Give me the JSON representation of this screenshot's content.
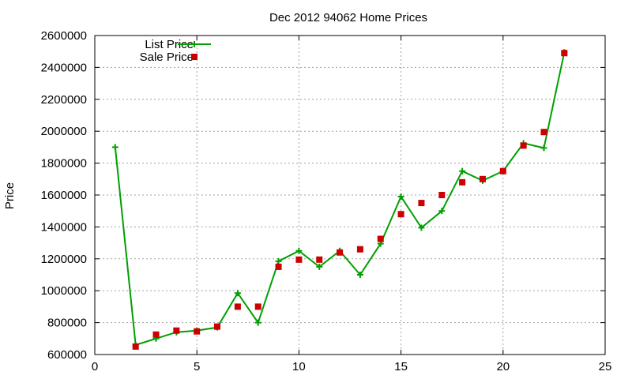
{
  "chart_data": {
    "type": "line",
    "title": "Dec 2012 94062 Home Prices",
    "xlabel": "",
    "ylabel": "Price",
    "xlim": [
      0,
      25
    ],
    "ylim": [
      600000,
      2600000
    ],
    "xticks": [
      0,
      5,
      10,
      15,
      20,
      25
    ],
    "yticks": [
      600000,
      800000,
      1000000,
      1200000,
      1400000,
      1600000,
      1800000,
      2000000,
      2200000,
      2400000,
      2600000
    ],
    "grid": true,
    "legend_position": "top-left",
    "series": [
      {
        "name": "List Price",
        "style": "line+cross",
        "color": "#00a000",
        "x": [
          1,
          2,
          3,
          4,
          5,
          6,
          7,
          8,
          9,
          10,
          11,
          12,
          13,
          14,
          15,
          16,
          17,
          18,
          19,
          20,
          21,
          22,
          23
        ],
        "y": [
          1900000,
          660000,
          700000,
          740000,
          750000,
          770000,
          985000,
          800000,
          1185000,
          1250000,
          1150000,
          1250000,
          1100000,
          1295000,
          1590000,
          1395000,
          1500000,
          1750000,
          1690000,
          1750000,
          1925000,
          1895000,
          2495000
        ]
      },
      {
        "name": "Sale Price",
        "style": "square",
        "color": "#cc0000",
        "x": [
          2,
          3,
          4,
          5,
          6,
          7,
          8,
          9,
          10,
          11,
          12,
          13,
          14,
          15,
          16,
          17,
          18,
          19,
          20,
          21,
          22,
          23
        ],
        "y": [
          650000,
          725000,
          750000,
          745000,
          775000,
          900000,
          900000,
          1150000,
          1195000,
          1195000,
          1240000,
          1260000,
          1325000,
          1480000,
          1550000,
          1600000,
          1680000,
          1700000,
          1750000,
          1910000,
          1995000,
          2490000
        ]
      }
    ]
  }
}
